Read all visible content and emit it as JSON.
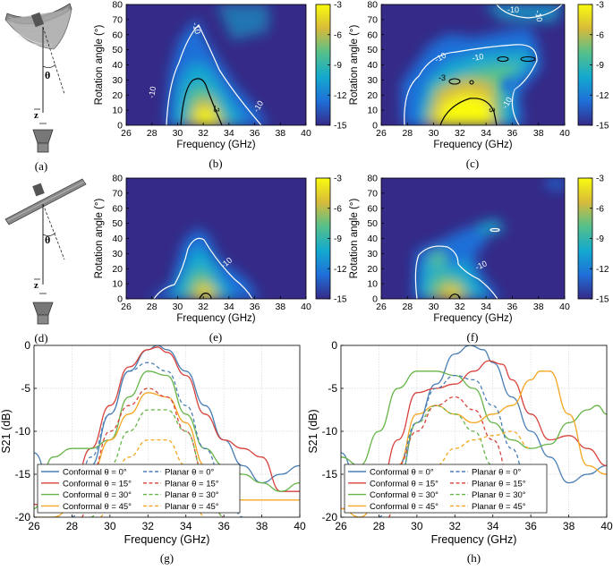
{
  "heatmap_common": {
    "xlabel": "Frequency (GHz)",
    "ylabel": "Rotation angle (°)",
    "xticks": [
      26,
      28,
      30,
      32,
      34,
      36,
      38,
      40
    ],
    "yticks": [
      0,
      10,
      20,
      30,
      40,
      50,
      60,
      70,
      80
    ],
    "colorbar_ticks": [
      -3,
      -6,
      -9,
      -12,
      -15
    ],
    "contour_label_white": "-10",
    "contour_label_black": "-3"
  },
  "line_common": {
    "xlabel": "Frequency (GHz)",
    "ylabel": "S21 (dB)",
    "xticks": [
      26,
      28,
      30,
      32,
      34,
      36,
      38,
      40
    ],
    "yticks": [
      0,
      -5,
      -10,
      -15,
      -20
    ],
    "legend": [
      {
        "label": "Conformal θ = 0°",
        "color": "#4a7fb5",
        "dash": false
      },
      {
        "label": "Planar θ = 0°",
        "color": "#4a7fb5",
        "dash": true
      },
      {
        "label": "Conformal θ = 15°",
        "color": "#d9423c",
        "dash": false
      },
      {
        "label": "Planar θ = 15°",
        "color": "#d9423c",
        "dash": true
      },
      {
        "label": "Conformal θ = 30°",
        "color": "#66b448",
        "dash": false
      },
      {
        "label": "Planar θ = 30°",
        "color": "#66b448",
        "dash": true
      },
      {
        "label": "Conformal θ = 45°",
        "color": "#f5a623",
        "dash": false
      },
      {
        "label": "Planar θ = 45°",
        "color": "#f5a623",
        "dash": true
      }
    ]
  },
  "schematics": {
    "a": {
      "angle": "θ",
      "axis": "z",
      "caption": "(a)"
    },
    "d": {
      "angle": "θ",
      "axis": "z",
      "caption": "(d)"
    }
  },
  "chart_data": [
    {
      "id": "b",
      "type": "heatmap",
      "caption": "(b)",
      "xlim": [
        26,
        40
      ],
      "ylim": [
        0,
        80
      ],
      "zlim": [
        -15,
        -3
      ],
      "peak": {
        "x": 32.5,
        "y": 5,
        "value": -3
      }
    },
    {
      "id": "c",
      "type": "heatmap",
      "caption": "(c)",
      "xlim": [
        26,
        40
      ],
      "ylim": [
        0,
        80
      ],
      "zlim": [
        -15,
        -3
      ],
      "peak": {
        "x": 32.5,
        "y": 5,
        "value": -3
      }
    },
    {
      "id": "e",
      "type": "heatmap",
      "caption": "(e)",
      "xlim": [
        26,
        40
      ],
      "ylim": [
        0,
        80
      ],
      "zlim": [
        -15,
        -3
      ],
      "peak": {
        "x": 32.5,
        "y": 2,
        "value": -3
      }
    },
    {
      "id": "f",
      "type": "heatmap",
      "caption": "(f)",
      "xlim": [
        26,
        40
      ],
      "ylim": [
        0,
        80
      ],
      "zlim": [
        -15,
        -3
      ],
      "peak": {
        "x": 32.3,
        "y": 2,
        "value": -3
      }
    },
    {
      "id": "g",
      "type": "line",
      "caption": "(g)",
      "xlim": [
        26,
        40
      ],
      "ylim": [
        -20,
        0
      ],
      "series": [
        {
          "name": "Conformal θ = 0°",
          "color": "#4a7fb5",
          "dash": false,
          "x": [
            26,
            27,
            28,
            29,
            30,
            31,
            32,
            32.5,
            33,
            34,
            35,
            36,
            37,
            38,
            39,
            40
          ],
          "y": [
            -12.5,
            -17,
            -19,
            -14,
            -8,
            -3,
            -0.5,
            0,
            -0.5,
            -3,
            -7,
            -11,
            -14,
            -16,
            -15,
            -14
          ]
        },
        {
          "name": "Conformal θ = 15°",
          "color": "#d9423c",
          "dash": false,
          "x": [
            26,
            27,
            28,
            29,
            30,
            31,
            32,
            32.5,
            33,
            34,
            35,
            36,
            37,
            38,
            39,
            40
          ],
          "y": [
            -18.5,
            -19,
            -17,
            -12,
            -7,
            -2.5,
            -0.5,
            -0.2,
            -0.8,
            -3.5,
            -8,
            -11,
            -12,
            -13,
            -17,
            -17
          ]
        },
        {
          "name": "Conformal θ = 30°",
          "color": "#66b448",
          "dash": false,
          "x": [
            26,
            27,
            28,
            29,
            30,
            31,
            32,
            33,
            34,
            35,
            36,
            37,
            38,
            39,
            40
          ],
          "y": [
            -19,
            -13,
            -12,
            -12,
            -11,
            -6,
            -3,
            -3.5,
            -8,
            -12,
            -14,
            -15,
            -16,
            -17,
            -16
          ]
        },
        {
          "name": "Conformal θ = 45°",
          "color": "#f5a623",
          "dash": false,
          "x": [
            26,
            27,
            28,
            29,
            30,
            31,
            32,
            33,
            34,
            35,
            36,
            37,
            38,
            39,
            40
          ],
          "y": [
            -20,
            -20,
            -19,
            -15,
            -11,
            -8,
            -5.5,
            -6,
            -9,
            -14,
            -17,
            -18,
            -18,
            -18,
            -18
          ]
        },
        {
          "name": "Planar θ = 0°",
          "color": "#4a7fb5",
          "dash": true,
          "x": [
            28,
            29,
            30,
            31,
            32,
            33,
            34,
            35,
            36,
            37
          ],
          "y": [
            -20,
            -13,
            -8,
            -3,
            -2,
            -3,
            -7,
            -12,
            -16,
            -20
          ]
        },
        {
          "name": "Planar θ = 15°",
          "color": "#d9423c",
          "dash": true,
          "x": [
            28.5,
            29,
            30,
            31,
            32,
            33,
            34,
            35,
            36
          ],
          "y": [
            -20,
            -15,
            -10,
            -7,
            -5,
            -6,
            -10,
            -15,
            -20
          ]
        },
        {
          "name": "Planar θ = 30°",
          "color": "#66b448",
          "dash": true,
          "x": [
            29,
            30,
            31,
            32,
            33,
            34,
            35,
            36
          ],
          "y": [
            -20,
            -14,
            -10,
            -7.5,
            -7.5,
            -10,
            -15,
            -20
          ]
        },
        {
          "name": "Planar θ = 45°",
          "color": "#f5a623",
          "dash": true,
          "x": [
            29.5,
            30,
            31,
            32,
            33,
            34,
            35
          ],
          "y": [
            -20,
            -16,
            -13,
            -11,
            -11,
            -14,
            -20
          ]
        }
      ]
    },
    {
      "id": "h",
      "type": "line",
      "caption": "(h)",
      "xlim": [
        26,
        40
      ],
      "ylim": [
        -20,
        0
      ],
      "series": [
        {
          "name": "Conformal θ = 0°",
          "color": "#4a7fb5",
          "dash": false,
          "x": [
            26,
            27,
            28,
            29,
            30,
            31,
            32,
            32.8,
            33.5,
            34,
            35,
            36,
            37,
            38,
            39,
            40
          ],
          "y": [
            -12.5,
            -17,
            -19,
            -16,
            -9,
            -4.5,
            -1,
            0,
            -0.5,
            -2,
            -6,
            -10,
            -13,
            -16,
            -15,
            -14
          ]
        },
        {
          "name": "Conformal θ = 15°",
          "color": "#d9423c",
          "dash": false,
          "x": [
            26,
            27,
            28,
            29,
            30,
            31,
            32,
            33,
            33.8,
            34.5,
            35,
            36,
            37,
            38,
            39,
            40
          ],
          "y": [
            -19,
            -19,
            -17,
            -11,
            -5.5,
            -5,
            -4.5,
            -3,
            -1.8,
            -2.2,
            -4,
            -8,
            -11,
            -10.5,
            -12,
            -14
          ]
        },
        {
          "name": "Conformal θ = 30°",
          "color": "#66b448",
          "dash": false,
          "x": [
            26,
            27,
            28,
            29,
            30,
            31,
            32,
            33,
            34,
            35,
            36,
            37,
            38,
            39,
            39.5,
            40
          ],
          "y": [
            -13,
            -14,
            -10,
            -5,
            -3,
            -3,
            -3.5,
            -5,
            -9,
            -11,
            -12,
            -11.5,
            -9,
            -7.5,
            -7,
            -8
          ]
        },
        {
          "name": "Conformal θ = 45°",
          "color": "#f5a623",
          "dash": false,
          "x": [
            26,
            27,
            28,
            29,
            30,
            31,
            32,
            33,
            34,
            35,
            36,
            36.5,
            37,
            38,
            39,
            40
          ],
          "y": [
            -19,
            -20,
            -18,
            -14,
            -8,
            -7,
            -8,
            -9,
            -8,
            -7,
            -4,
            -3,
            -3,
            -8,
            -14,
            -15
          ]
        },
        {
          "name": "Planar θ = 0°",
          "color": "#4a7fb5",
          "dash": true,
          "x": [
            28,
            29,
            30,
            31,
            32,
            33,
            34,
            35,
            36
          ],
          "y": [
            -20,
            -14,
            -9,
            -5,
            -3.5,
            -4,
            -7,
            -12,
            -18
          ]
        },
        {
          "name": "Planar θ = 15°",
          "color": "#d9423c",
          "dash": true,
          "x": [
            28.5,
            29,
            30,
            31,
            32,
            33,
            34,
            35
          ],
          "y": [
            -20,
            -14,
            -10,
            -7,
            -6,
            -7.5,
            -11,
            -16
          ]
        },
        {
          "name": "Planar θ = 30°",
          "color": "#66b448",
          "dash": true,
          "x": [
            29,
            30,
            31,
            32,
            33,
            34
          ],
          "y": [
            -16,
            -9,
            -7,
            -8,
            -10,
            -14
          ]
        },
        {
          "name": "Planar θ = 45°",
          "color": "#f5a623",
          "dash": true,
          "x": [
            30,
            31,
            32,
            33,
            34,
            35,
            36
          ],
          "y": [
            -18,
            -14,
            -12,
            -11,
            -10.5,
            -10,
            -12
          ]
        }
      ]
    }
  ]
}
